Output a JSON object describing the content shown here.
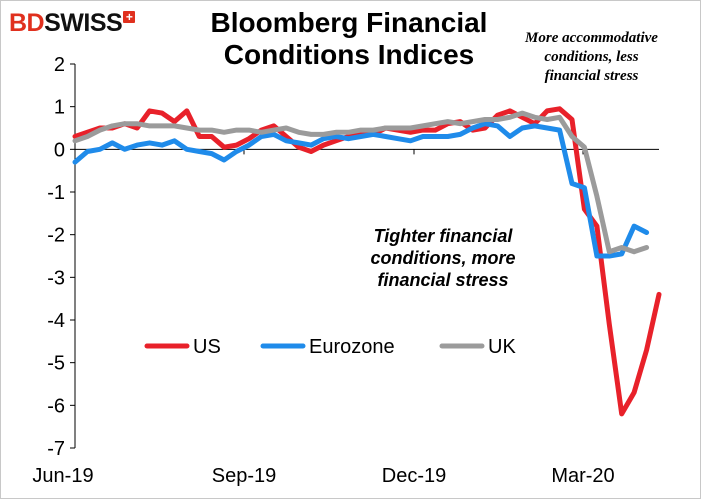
{
  "logo": {
    "brand_bd": "BD",
    "brand_rest": "SWISS",
    "mark": "+"
  },
  "chart_data": {
    "type": "line",
    "title": "Bloomberg Financial Conditions Indices",
    "title_lines": [
      "Bloomberg Financial",
      "Conditions Indices"
    ],
    "annotations": {
      "top": "More accommodative conditions, less financial stress",
      "top_lines": [
        "More accommodative",
        "conditions,  less",
        "financial  stress"
      ],
      "middle": "Tighter financial conditions, more financial stress",
      "middle_lines": [
        "Tighter financial",
        "conditions, more",
        "financial stress"
      ]
    },
    "ylim": [
      -7,
      2
    ],
    "yticks": [
      "2",
      "1",
      "0",
      "-1",
      "-2",
      "-3",
      "-4",
      "-5",
      "-6",
      "-7"
    ],
    "xticks": [
      "Jun-19",
      "Sep-19",
      "Dec-19",
      "Mar-20"
    ],
    "grid": false,
    "legend_position": "center-left",
    "series": [
      {
        "name": "US",
        "color": "#e8212a",
        "values": [
          0.3,
          0.4,
          0.5,
          0.5,
          0.6,
          0.5,
          0.9,
          0.85,
          0.65,
          0.9,
          0.3,
          0.3,
          0.05,
          0.1,
          0.25,
          0.45,
          0.55,
          0.3,
          0.05,
          -0.05,
          0.1,
          0.2,
          0.3,
          0.4,
          0.35,
          0.5,
          0.45,
          0.4,
          0.45,
          0.45,
          0.6,
          0.65,
          0.45,
          0.5,
          0.8,
          0.9,
          0.75,
          0.6,
          0.9,
          0.95,
          0.7,
          -1.4,
          -1.8,
          -4.1,
          -6.2,
          -5.7,
          -4.7,
          -3.4
        ]
      },
      {
        "name": "Eurozone",
        "color": "#1f8bea",
        "values": [
          -0.3,
          -0.05,
          0.0,
          0.15,
          0.0,
          0.1,
          0.15,
          0.1,
          0.2,
          0.0,
          -0.05,
          -0.1,
          -0.25,
          -0.05,
          0.1,
          0.3,
          0.35,
          0.2,
          0.15,
          0.1,
          0.25,
          0.3,
          0.25,
          0.3,
          0.35,
          0.3,
          0.25,
          0.2,
          0.3,
          0.3,
          0.3,
          0.35,
          0.5,
          0.6,
          0.55,
          0.3,
          0.5,
          0.55,
          0.5,
          0.45,
          -0.8,
          -0.9,
          -2.5,
          -2.5,
          -2.45,
          -1.8,
          -1.95
        ]
      },
      {
        "name": "UK",
        "color": "#9b9b9b",
        "values": [
          0.2,
          0.3,
          0.45,
          0.55,
          0.6,
          0.6,
          0.55,
          0.55,
          0.55,
          0.5,
          0.45,
          0.45,
          0.4,
          0.45,
          0.45,
          0.4,
          0.45,
          0.5,
          0.4,
          0.35,
          0.35,
          0.4,
          0.4,
          0.45,
          0.45,
          0.5,
          0.5,
          0.5,
          0.55,
          0.6,
          0.65,
          0.6,
          0.65,
          0.7,
          0.7,
          0.75,
          0.85,
          0.75,
          0.7,
          0.75,
          0.3,
          0.05,
          -1.1,
          -2.4,
          -2.3,
          -2.4,
          -2.3
        ]
      }
    ]
  }
}
